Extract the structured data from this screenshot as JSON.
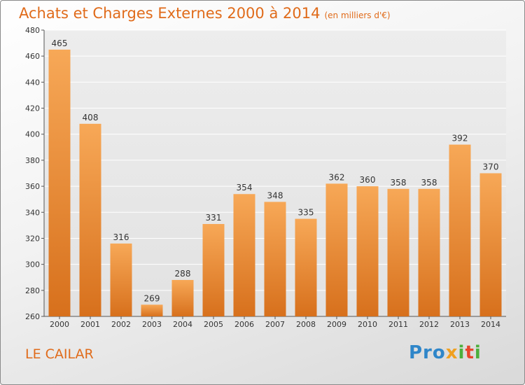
{
  "header": {
    "title": "Achats et Charges Externes 2000 à 2014",
    "subtitle": "(en milliers d'€)"
  },
  "footer": {
    "city": "LE CAILAR",
    "logo": "Proxiti"
  },
  "colors": {
    "accent": "#e06b1a",
    "bar_top": "#f7a857",
    "bar_bottom": "#d7701c"
  },
  "chart_data": {
    "type": "bar",
    "title": "Achats et Charges Externes 2000 à 2014",
    "subtitle": "(en milliers d'€)",
    "categories": [
      "2000",
      "2001",
      "2002",
      "2003",
      "2004",
      "2005",
      "2006",
      "2007",
      "2008",
      "2009",
      "2010",
      "2011",
      "2012",
      "2013",
      "2014"
    ],
    "values": [
      465,
      408,
      316,
      269,
      288,
      331,
      354,
      348,
      335,
      362,
      360,
      358,
      358,
      392,
      370
    ],
    "ylim": [
      260,
      480
    ],
    "yticks": [
      260,
      280,
      300,
      320,
      340,
      360,
      380,
      400,
      420,
      440,
      460,
      480
    ],
    "grid": true,
    "data_labels": true
  }
}
